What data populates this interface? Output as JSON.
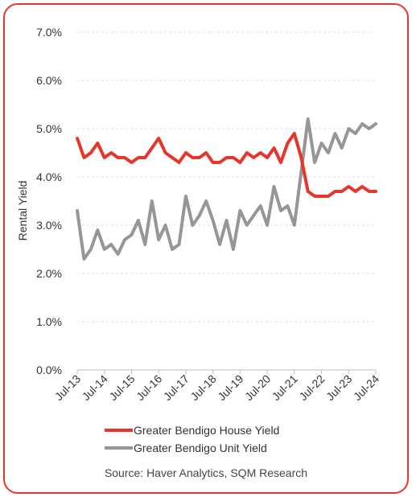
{
  "chart_data": {
    "type": "line",
    "title": "",
    "xlabel": "",
    "ylabel": "Rental Yield",
    "ylim": [
      0,
      7
    ],
    "yticks": [
      "0.0%",
      "1.0%",
      "2.0%",
      "3.0%",
      "4.0%",
      "5.0%",
      "6.0%",
      "7.0%"
    ],
    "xticks": [
      "Jul-13",
      "Jul-14",
      "Jul-15",
      "Jul-16",
      "Jul-17",
      "Jul-18",
      "Jul-19",
      "Jul-20",
      "Jul-21",
      "Jul-22",
      "Jul-23",
      "Jul-24"
    ],
    "grid": true,
    "legend_position": "bottom",
    "series": [
      {
        "name": "Greater Bendigo House Yield",
        "color": "#e8352b",
        "x": [
          2013.5,
          2013.75,
          2014.0,
          2014.25,
          2014.5,
          2014.75,
          2015.0,
          2015.25,
          2015.5,
          2015.75,
          2016.0,
          2016.25,
          2016.5,
          2016.75,
          2017.0,
          2017.25,
          2017.5,
          2017.75,
          2018.0,
          2018.25,
          2018.5,
          2018.75,
          2019.0,
          2019.25,
          2019.5,
          2019.75,
          2020.0,
          2020.25,
          2020.5,
          2020.75,
          2021.0,
          2021.25,
          2021.5,
          2021.75,
          2022.0,
          2022.25,
          2022.5,
          2022.75,
          2023.0,
          2023.25,
          2023.5,
          2023.75,
          2024.0,
          2024.25,
          2024.5
        ],
        "values": [
          4.8,
          4.4,
          4.5,
          4.7,
          4.4,
          4.5,
          4.4,
          4.4,
          4.3,
          4.4,
          4.4,
          4.6,
          4.8,
          4.5,
          4.4,
          4.3,
          4.5,
          4.4,
          4.4,
          4.5,
          4.3,
          4.3,
          4.4,
          4.4,
          4.3,
          4.5,
          4.4,
          4.5,
          4.4,
          4.6,
          4.3,
          4.7,
          4.9,
          4.4,
          3.7,
          3.6,
          3.6,
          3.6,
          3.7,
          3.7,
          3.8,
          3.7,
          3.8,
          3.7,
          3.7
        ]
      },
      {
        "name": "Greater Bendigo Unit Yield",
        "color": "#969696",
        "x": [
          2013.5,
          2013.75,
          2014.0,
          2014.25,
          2014.5,
          2014.75,
          2015.0,
          2015.25,
          2015.5,
          2015.75,
          2016.0,
          2016.25,
          2016.5,
          2016.75,
          2017.0,
          2017.25,
          2017.5,
          2017.75,
          2018.0,
          2018.25,
          2018.5,
          2018.75,
          2019.0,
          2019.25,
          2019.5,
          2019.75,
          2020.0,
          2020.25,
          2020.5,
          2020.75,
          2021.0,
          2021.25,
          2021.5,
          2021.75,
          2022.0,
          2022.25,
          2022.5,
          2022.75,
          2023.0,
          2023.25,
          2023.5,
          2023.75,
          2024.0,
          2024.25,
          2024.5
        ],
        "values": [
          3.3,
          2.3,
          2.5,
          2.9,
          2.5,
          2.6,
          2.4,
          2.7,
          2.8,
          3.1,
          2.6,
          3.5,
          2.7,
          3.0,
          2.5,
          2.6,
          3.6,
          3.0,
          3.2,
          3.5,
          3.1,
          2.6,
          3.1,
          2.5,
          3.3,
          3.0,
          3.2,
          3.4,
          3.0,
          3.8,
          3.3,
          3.4,
          3.0,
          4.1,
          5.2,
          4.3,
          4.7,
          4.5,
          4.9,
          4.6,
          5.0,
          4.9,
          5.1,
          5.0,
          5.1
        ]
      }
    ],
    "source": "Source: Haver Analytics, SQM Research"
  }
}
